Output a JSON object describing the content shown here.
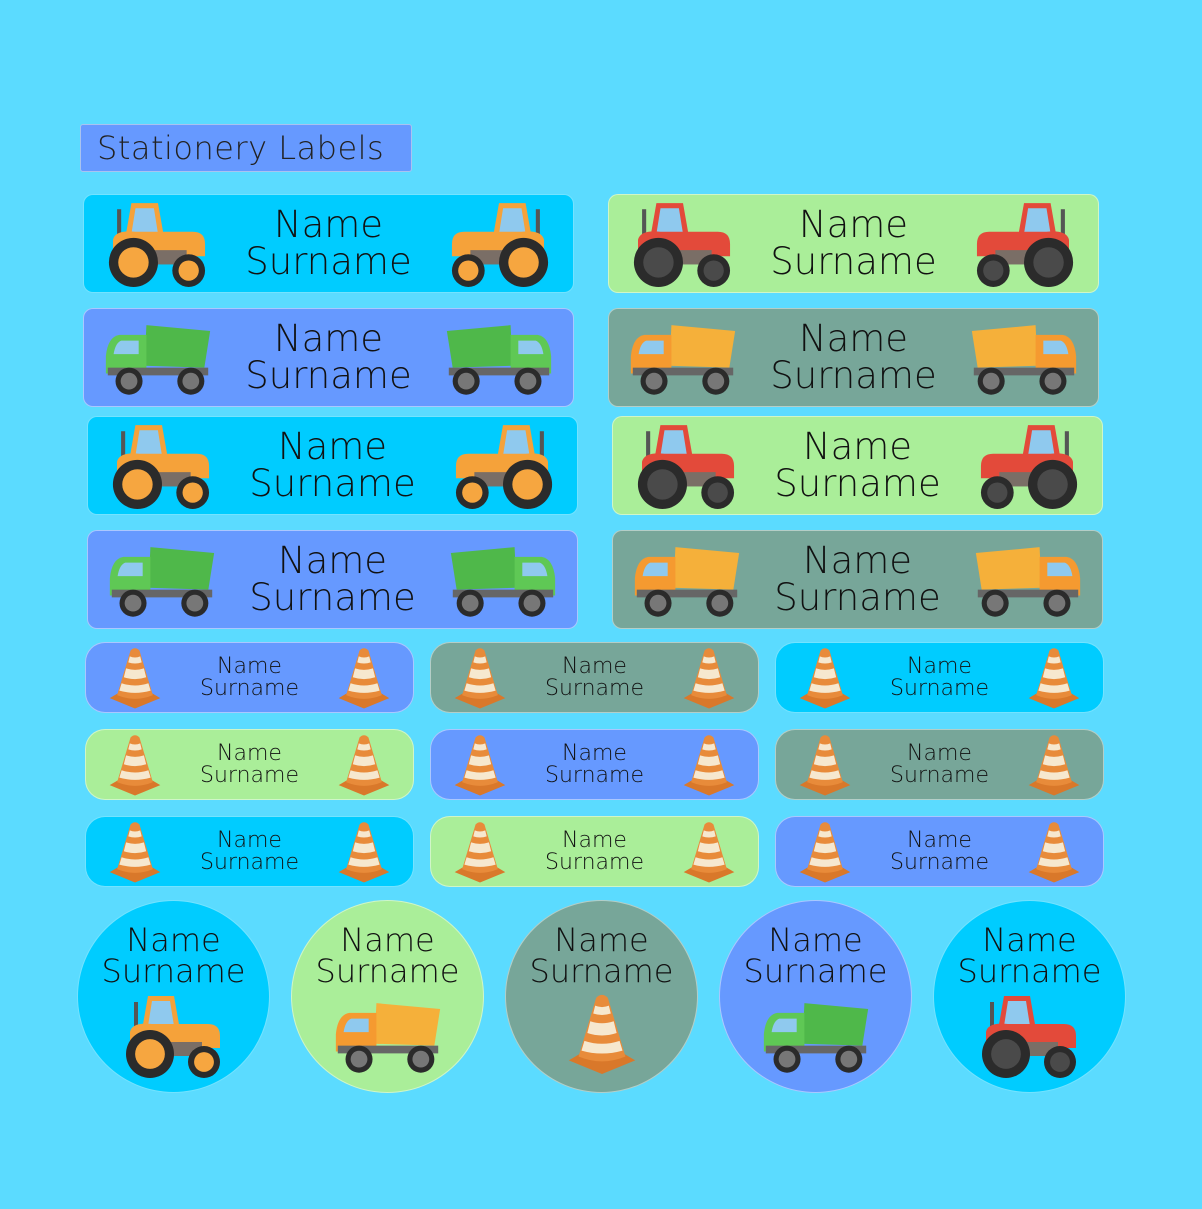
{
  "title": "Stationery Labels",
  "colors": {
    "background": "#5BDBFF",
    "cyan": "#00CCFF",
    "blue": "#6699FF",
    "green": "#AAEE99",
    "sage": "#77A699"
  },
  "large_labels": [
    {
      "name": "Name",
      "surname": "Surname",
      "color": "#00CCFF",
      "icon": "orange-tractor"
    },
    {
      "name": "Name",
      "surname": "Surname",
      "color": "#AAEE99",
      "icon": "red-tractor"
    },
    {
      "name": "Name",
      "surname": "Surname",
      "color": "#6699FF",
      "icon": "green-dump-truck"
    },
    {
      "name": "Name",
      "surname": "Surname",
      "color": "#77A699",
      "icon": "orange-dump-truck"
    },
    {
      "name": "Name",
      "surname": "Surname",
      "color": "#00CCFF",
      "icon": "orange-tractor"
    },
    {
      "name": "Name",
      "surname": "Surname",
      "color": "#AAEE99",
      "icon": "red-tractor"
    },
    {
      "name": "Name",
      "surname": "Surname",
      "color": "#6699FF",
      "icon": "green-dump-truck"
    },
    {
      "name": "Name",
      "surname": "Surname",
      "color": "#77A699",
      "icon": "orange-dump-truck"
    }
  ],
  "small_labels": [
    {
      "name": "Name",
      "surname": "Surname",
      "color": "#6699FF",
      "icon": "traffic-cone"
    },
    {
      "name": "Name",
      "surname": "Surname",
      "color": "#77A699",
      "icon": "traffic-cone"
    },
    {
      "name": "Name",
      "surname": "Surname",
      "color": "#00CCFF",
      "icon": "traffic-cone"
    },
    {
      "name": "Name",
      "surname": "Surname",
      "color": "#AAEE99",
      "icon": "traffic-cone"
    },
    {
      "name": "Name",
      "surname": "Surname",
      "color": "#6699FF",
      "icon": "traffic-cone"
    },
    {
      "name": "Name",
      "surname": "Surname",
      "color": "#77A699",
      "icon": "traffic-cone"
    },
    {
      "name": "Name",
      "surname": "Surname",
      "color": "#00CCFF",
      "icon": "traffic-cone"
    },
    {
      "name": "Name",
      "surname": "Surname",
      "color": "#AAEE99",
      "icon": "traffic-cone"
    },
    {
      "name": "Name",
      "surname": "Surname",
      "color": "#6699FF",
      "icon": "traffic-cone"
    }
  ],
  "round_labels": [
    {
      "name": "Name",
      "surname": "Surname",
      "color": "#00CCFF",
      "icon": "orange-tractor"
    },
    {
      "name": "Name",
      "surname": "Surname",
      "color": "#AAEE99",
      "icon": "orange-dump-truck"
    },
    {
      "name": "Name",
      "surname": "Surname",
      "color": "#77A699",
      "icon": "traffic-cone"
    },
    {
      "name": "Name",
      "surname": "Surname",
      "color": "#6699FF",
      "icon": "green-dump-truck"
    },
    {
      "name": "Name",
      "surname": "Surname",
      "color": "#00CCFF",
      "icon": "red-tractor"
    }
  ]
}
